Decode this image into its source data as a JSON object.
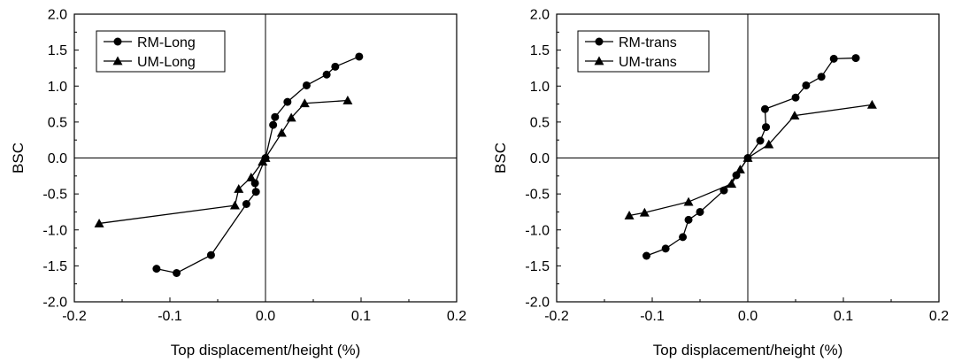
{
  "chart_data": [
    {
      "type": "line",
      "title": "",
      "xlabel": "Top displacement/height (%)",
      "ylabel": "BSC",
      "xlim": [
        -0.2,
        0.2
      ],
      "ylim": [
        -2.0,
        2.0
      ],
      "x_ticks": [
        "-0.2",
        "-0.1",
        "0.0",
        "0.1",
        "0.2"
      ],
      "y_ticks": [
        "2.0",
        "1.5",
        "1.0",
        "0.5",
        "0.0",
        "-0.5",
        "-1.0",
        "-1.5",
        "-2.0"
      ],
      "grid": false,
      "legend_position": "top-left",
      "zero_lines": true,
      "series": [
        {
          "name": "RM-Long",
          "marker": "circle",
          "color": "#000000",
          "points": [
            [
              -0.114,
              -1.54
            ],
            [
              -0.093,
              -1.6
            ],
            [
              -0.057,
              -1.35
            ],
            [
              -0.02,
              -0.64
            ],
            [
              -0.01,
              -0.47
            ],
            [
              -0.011,
              -0.35
            ],
            [
              0.0,
              0.0
            ],
            [
              0.008,
              0.46
            ],
            [
              0.01,
              0.57
            ],
            [
              0.023,
              0.78
            ],
            [
              0.043,
              1.01
            ],
            [
              0.064,
              1.16
            ],
            [
              0.073,
              1.27
            ],
            [
              0.098,
              1.41
            ]
          ]
        },
        {
          "name": "UM-Long",
          "marker": "triangle",
          "color": "#000000",
          "points": [
            [
              -0.174,
              -0.91
            ],
            [
              -0.032,
              -0.66
            ],
            [
              -0.028,
              -0.43
            ],
            [
              -0.015,
              -0.27
            ],
            [
              -0.003,
              -0.05
            ],
            [
              0.0,
              0.0
            ],
            [
              0.017,
              0.35
            ],
            [
              0.027,
              0.56
            ],
            [
              0.041,
              0.76
            ],
            [
              0.086,
              0.8
            ]
          ]
        }
      ]
    },
    {
      "type": "line",
      "title": "",
      "xlabel": "Top displacement/height (%)",
      "ylabel": "BSC",
      "xlim": [
        -0.2,
        0.2
      ],
      "ylim": [
        -2.0,
        2.0
      ],
      "x_ticks": [
        "-0.2",
        "-0.1",
        "0.0",
        "0.1",
        "0.2"
      ],
      "y_ticks": [
        "2.0",
        "1.5",
        "1.0",
        "0.5",
        "0.0",
        "-0.5",
        "-1.0",
        "-1.5",
        "-2.0"
      ],
      "grid": false,
      "legend_position": "top-left",
      "zero_lines": true,
      "series": [
        {
          "name": "RM-trans",
          "marker": "circle",
          "color": "#000000",
          "points": [
            [
              -0.106,
              -1.36
            ],
            [
              -0.086,
              -1.26
            ],
            [
              -0.068,
              -1.1
            ],
            [
              -0.062,
              -0.86
            ],
            [
              -0.05,
              -0.75
            ],
            [
              -0.025,
              -0.45
            ],
            [
              -0.012,
              -0.24
            ],
            [
              0.0,
              0.0
            ],
            [
              0.013,
              0.24
            ],
            [
              0.019,
              0.43
            ],
            [
              0.018,
              0.68
            ],
            [
              0.05,
              0.84
            ],
            [
              0.061,
              1.01
            ],
            [
              0.077,
              1.13
            ],
            [
              0.09,
              1.38
            ],
            [
              0.113,
              1.39
            ]
          ]
        },
        {
          "name": "UM-trans",
          "marker": "triangle",
          "color": "#000000",
          "points": [
            [
              -0.124,
              -0.8
            ],
            [
              -0.108,
              -0.76
            ],
            [
              -0.062,
              -0.61
            ],
            [
              -0.017,
              -0.36
            ],
            [
              -0.008,
              -0.16
            ],
            [
              0.0,
              0.0
            ],
            [
              0.022,
              0.19
            ],
            [
              0.049,
              0.59
            ],
            [
              0.13,
              0.74
            ]
          ]
        }
      ]
    }
  ]
}
